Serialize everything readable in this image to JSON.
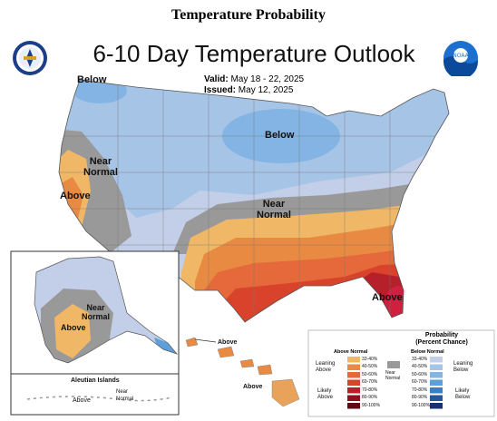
{
  "heading": "Temperature Probability",
  "map_title": "6-10 Day Temperature Outlook",
  "valid_label": "Valid:",
  "valid_value": "May 18 - 22, 2025",
  "issued_label": "Issued:",
  "issued_value": "May 12, 2025",
  "logos": {
    "left": "doc-seal-icon",
    "right": "noaa-logo-icon"
  },
  "region_labels": {
    "nw_below": "Below",
    "ne_below": "Below",
    "west_near_normal": "Near\nNormal",
    "west_above": "Above",
    "central_near_normal": "Near\nNormal",
    "se_above": "Above",
    "ak_near_normal": "Near\nNormal",
    "ak_above": "Above",
    "hi_above_1": "Above",
    "hi_above_2": "Above"
  },
  "aleutian": {
    "title": "Aleutian Islands",
    "above": "Above",
    "near": "Near\nNormal"
  },
  "legend": {
    "title": "Probability\n(Percent Chance)",
    "above_header": "Above Normal",
    "below_header": "Below Normal",
    "near_label": "Near\nNormal",
    "leaning_above": "Leaning\nAbove",
    "likely_above": "Likely\nAbove",
    "leaning_below": "Leaning\nBelow",
    "likely_below": "Likely\nBelow",
    "ranges": [
      "33-40%",
      "40-50%",
      "50-60%",
      "60-70%",
      "70-80%",
      "80-90%",
      "90-100%"
    ],
    "above_colors": [
      "#f0b866",
      "#e98a42",
      "#e5693a",
      "#d9432c",
      "#b5202a",
      "#8b1020",
      "#5e0a14"
    ],
    "below_colors": [
      "#c3cfe8",
      "#a6c4e6",
      "#83b4e3",
      "#5d9fda",
      "#3a7fc6",
      "#24579e",
      "#1a2f70"
    ],
    "near_color": "#999999"
  }
}
